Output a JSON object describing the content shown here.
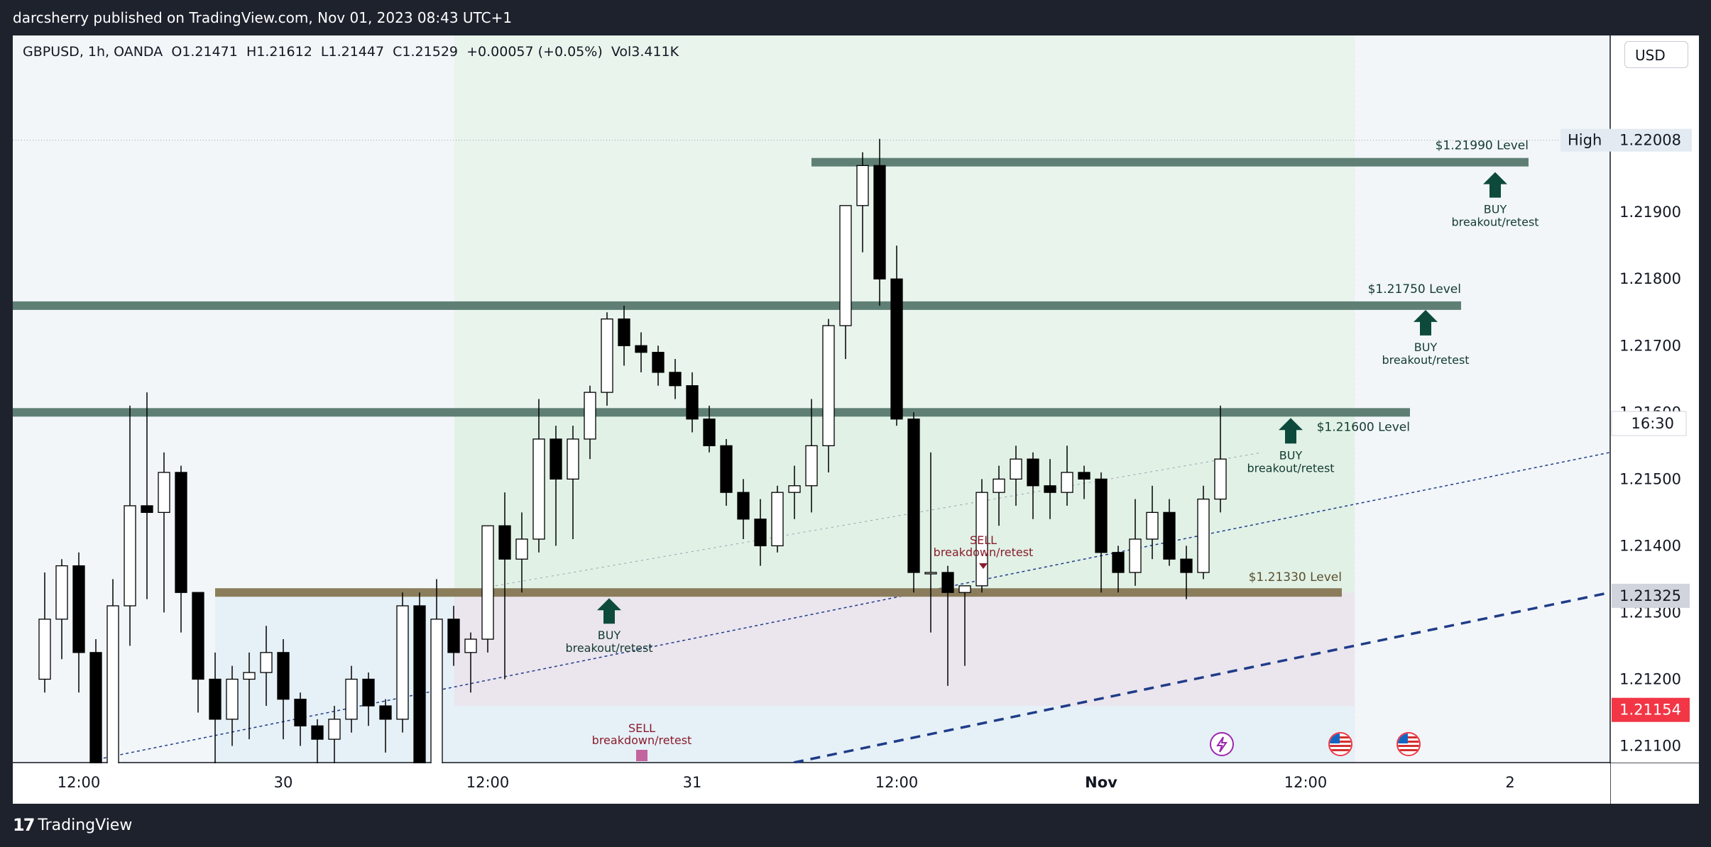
{
  "header": {
    "published": "darcsherry published on TradingView.com, Nov 01, 2023 08:43 UTC+1"
  },
  "legend": {
    "symbol": "GBPUSD, 1h, OANDA",
    "open": "O1.21471",
    "high": "H1.21612",
    "low": "L1.21447",
    "close": "C1.21529",
    "change": "+0.00057 (+0.05%)",
    "volume": "Vol3.411K"
  },
  "currency_button": "USD",
  "footer": {
    "brand": "TradingView"
  },
  "colors": {
    "up": "#ffffff",
    "down": "#000000",
    "level_green": "#5f7f75",
    "level_brown": "#8b7d5c",
    "buy_arrow": "#0e4a3c",
    "sell_text": "#8a1c2c",
    "trend_dashed": "#1f3c88",
    "price_red": "#f23645",
    "axis_label_bg": "#d1d4dc"
  },
  "icons": {
    "lightning": "lightning-icon",
    "us_flag": "us-flag-icon"
  },
  "chart_data": {
    "type": "candlestick",
    "symbol": "GBPUSD",
    "timeframe": "1h",
    "ylim": [
      1.21075,
      1.22165
    ],
    "y_ticks": [
      "1.21100",
      "1.21200",
      "1.21300",
      "1.21400",
      "1.21500",
      "1.21600",
      "1.21700",
      "1.21800",
      "1.21900"
    ],
    "x_ticks": [
      {
        "label": "12:00",
        "bar": 2
      },
      {
        "label": "30",
        "bar": 14
      },
      {
        "label": "12:00",
        "bar": 26
      },
      {
        "label": "31",
        "bar": 38
      },
      {
        "label": "12:00",
        "bar": 50
      },
      {
        "label": "Nov",
        "bar": 62
      },
      {
        "label": "12:00",
        "bar": 74
      },
      {
        "label": "2",
        "bar": 86
      }
    ],
    "candles": [
      [
        1.212,
        1.2136,
        1.2118,
        1.2129
      ],
      [
        1.2129,
        1.2138,
        1.2123,
        1.2137
      ],
      [
        1.2137,
        1.2139,
        1.2118,
        1.2124
      ],
      [
        1.2124,
        1.2126,
        1.2095,
        1.2101
      ],
      [
        1.2101,
        1.2135,
        1.21,
        1.2131
      ],
      [
        1.2131,
        1.2161,
        1.2125,
        1.2146
      ],
      [
        1.2146,
        1.2163,
        1.2132,
        1.2145
      ],
      [
        1.2145,
        1.2154,
        1.213,
        1.2151
      ],
      [
        1.2151,
        1.2152,
        1.2127,
        1.2133
      ],
      [
        1.2133,
        1.2133,
        1.2115,
        1.212
      ],
      [
        1.212,
        1.2124,
        1.2107,
        1.2114
      ],
      [
        1.2114,
        1.2122,
        1.211,
        1.212
      ],
      [
        1.212,
        1.2124,
        1.2111,
        1.2121
      ],
      [
        1.2121,
        1.2128,
        1.2116,
        1.2124
      ],
      [
        1.2124,
        1.2126,
        1.2111,
        1.2117
      ],
      [
        1.2117,
        1.2118,
        1.211,
        1.2113
      ],
      [
        1.2113,
        1.2114,
        1.2105,
        1.2111
      ],
      [
        1.2111,
        1.2116,
        1.2105,
        1.2114
      ],
      [
        1.2114,
        1.2122,
        1.2112,
        1.212
      ],
      [
        1.212,
        1.2121,
        1.2113,
        1.2116
      ],
      [
        1.2116,
        1.2117,
        1.2109,
        1.2114
      ],
      [
        1.2114,
        1.2133,
        1.2112,
        1.2131
      ],
      [
        1.2131,
        1.2133,
        1.209,
        1.2095
      ],
      [
        1.2095,
        1.2135,
        1.2093,
        1.2129
      ],
      [
        1.2129,
        1.2131,
        1.2122,
        1.2124
      ],
      [
        1.2124,
        1.2127,
        1.2118,
        1.2126
      ],
      [
        1.2126,
        1.2143,
        1.2124,
        1.2143
      ],
      [
        1.2143,
        1.2148,
        1.212,
        1.2138
      ],
      [
        1.2138,
        1.2145,
        1.2133,
        1.2141
      ],
      [
        1.2141,
        1.2162,
        1.2139,
        1.2156
      ],
      [
        1.2156,
        1.2158,
        1.214,
        1.215
      ],
      [
        1.215,
        1.2158,
        1.2141,
        1.2156
      ],
      [
        1.2156,
        1.2164,
        1.2153,
        1.2163
      ],
      [
        1.2163,
        1.2175,
        1.2161,
        1.2174
      ],
      [
        1.2174,
        1.2176,
        1.2167,
        1.217
      ],
      [
        1.217,
        1.2172,
        1.2166,
        1.2169
      ],
      [
        1.2169,
        1.217,
        1.2164,
        1.2166
      ],
      [
        1.2166,
        1.2168,
        1.2162,
        1.2164
      ],
      [
        1.2164,
        1.2166,
        1.2157,
        1.2159
      ],
      [
        1.2159,
        1.2161,
        1.2154,
        1.2155
      ],
      [
        1.2155,
        1.2156,
        1.2146,
        1.2148
      ],
      [
        1.2148,
        1.215,
        1.2141,
        1.2144
      ],
      [
        1.2144,
        1.2147,
        1.2137,
        1.214
      ],
      [
        1.214,
        1.2149,
        1.2139,
        1.2148
      ],
      [
        1.2148,
        1.2152,
        1.2144,
        1.2149
      ],
      [
        1.2149,
        1.2162,
        1.2145,
        1.2155
      ],
      [
        1.2155,
        1.2174,
        1.2151,
        1.2173
      ],
      [
        1.2173,
        1.219,
        1.2168,
        1.2191
      ],
      [
        1.2191,
        1.2199,
        1.2184,
        1.2197
      ],
      [
        1.2197,
        1.2201,
        1.2176,
        1.218
      ],
      [
        1.218,
        1.2185,
        1.2158,
        1.2159
      ],
      [
        1.2159,
        1.216,
        1.2133,
        1.2136
      ],
      [
        1.2136,
        1.2154,
        1.2127,
        1.2136
      ],
      [
        1.2136,
        1.2137,
        1.2119,
        1.2133
      ],
      [
        1.2133,
        1.2134,
        1.2122,
        1.2134
      ],
      [
        1.2134,
        1.215,
        1.2133,
        1.2148
      ],
      [
        1.2148,
        1.2152,
        1.2143,
        1.215
      ],
      [
        1.215,
        1.2155,
        1.2146,
        1.2153
      ],
      [
        1.2153,
        1.2154,
        1.2144,
        1.2149
      ],
      [
        1.2149,
        1.2153,
        1.2144,
        1.2148
      ],
      [
        1.2148,
        1.2155,
        1.2146,
        1.2151
      ],
      [
        1.2151,
        1.2152,
        1.2147,
        1.215
      ],
      [
        1.215,
        1.2151,
        1.2133,
        1.2139
      ],
      [
        1.2139,
        1.214,
        1.2133,
        1.2136
      ],
      [
        1.2136,
        1.2147,
        1.2134,
        1.2141
      ],
      [
        1.2141,
        1.2149,
        1.2138,
        1.2145
      ],
      [
        1.2145,
        1.2147,
        1.2137,
        1.2138
      ],
      [
        1.2138,
        1.214,
        1.2132,
        1.2136
      ],
      [
        1.2136,
        1.2149,
        1.2135,
        1.2147
      ],
      [
        1.2147,
        1.2161,
        1.2145,
        1.2153
      ]
    ],
    "levels": [
      {
        "label": "$1.21990 Level",
        "price": 1.21975
      },
      {
        "label": "$1.21750 Level",
        "price": 1.2176
      },
      {
        "label": "$1.21600 Level",
        "price": 1.216
      },
      {
        "label": "$1.21330 Level",
        "price": 1.2133
      }
    ],
    "annotations": [
      {
        "kind": "buy",
        "text": "BUY",
        "subtext": "breakout/retest"
      },
      {
        "kind": "buy",
        "text": "BUY",
        "subtext": "breakout/retest"
      },
      {
        "kind": "buy",
        "text": "BUY",
        "subtext": "breakout/retest"
      },
      {
        "kind": "buy",
        "text": "BUY",
        "subtext": "breakout/retest"
      },
      {
        "kind": "sell",
        "text": "SELL",
        "subtext": "breakdown/retest"
      },
      {
        "kind": "sell",
        "text": "SELL",
        "subtext": "breakdown/retest"
      }
    ],
    "price_labels": {
      "high_label": "High",
      "high": "1.22008",
      "time": "16:30",
      "level": "1.21325",
      "current": "1.21154"
    }
  }
}
